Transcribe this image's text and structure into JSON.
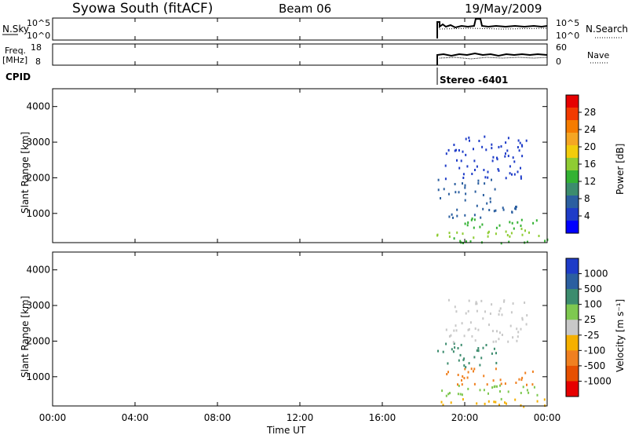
{
  "header": {
    "station": "Syowa South (fitACF)",
    "beam": "Beam 06",
    "date": "19/May/2009"
  },
  "top_panels": {
    "nsky_label": "N.Sky",
    "nsearch_label": "N.Search",
    "nsky_ticks": [
      "10^5",
      "10^0"
    ],
    "nsearch_ticks": [
      "10^5",
      "10^0"
    ],
    "freq_label_1": "Freq.",
    "freq_label_2": "[MHz]",
    "freq_ticks": [
      "18",
      "8"
    ],
    "nave_label": "Nave",
    "nave_ticks": [
      "60",
      "0"
    ],
    "cpid_label": "CPID",
    "cpid_value": "Stereo -6401"
  },
  "axes": {
    "xlabel": "Time UT",
    "x_ticks": [
      "00:00",
      "04:00",
      "08:00",
      "12:00",
      "16:00",
      "20:00",
      "00:00"
    ],
    "ylabel": "Slant Range [km]",
    "y_ticks": [
      "4000",
      "3000",
      "2000",
      "1000"
    ]
  },
  "power_scale": {
    "label": "Power [dB]",
    "ticks": [
      "28",
      "24",
      "20",
      "16",
      "12",
      "8",
      "4"
    ],
    "colors": [
      "#e60000",
      "#f23a00",
      "#f57c00",
      "#f5a623",
      "#f2cc0c",
      "#8fcc33",
      "#33b233",
      "#3c8c6e",
      "#2b5fa0",
      "#1e3cc8",
      "#0000ff"
    ]
  },
  "velocity_scale": {
    "label": "Velocity [m s⁻¹]",
    "ticks": [
      "1000",
      "500",
      "100",
      "25",
      "-25",
      "-100",
      "-500",
      "-1000"
    ],
    "colors": [
      "#1e3cc8",
      "#2b5fa0",
      "#3c8c6e",
      "#7ec850",
      "#c8c8c8",
      "#f5b000",
      "#f08020",
      "#e65000",
      "#e60000"
    ]
  },
  "chart_data": [
    {
      "type": "line",
      "name": "noise",
      "x": [
        18.4,
        24.0
      ],
      "xlim": [
        0,
        24
      ],
      "ylim": [
        0,
        5
      ]
    },
    {
      "type": "line",
      "name": "frequency",
      "xlim": [
        0,
        24
      ],
      "ylim": [
        8,
        18
      ],
      "x": [
        18.4,
        24.0
      ]
    },
    {
      "type": "heatmap",
      "name": "power",
      "xlim": [
        0,
        24
      ],
      "ylim": [
        180,
        4500
      ],
      "data_start_hour": 18.4,
      "regions": [
        {
          "t0": 18.5,
          "t1": 24.0,
          "r0": 180,
          "r1": 350,
          "power": 14
        },
        {
          "t0": 18.6,
          "t1": 23.8,
          "r0": 350,
          "r1": 600,
          "power": 16
        },
        {
          "t0": 19.0,
          "t1": 23.5,
          "r0": 600,
          "r1": 900,
          "power": 12
        },
        {
          "t0": 19.2,
          "t1": 22.5,
          "r0": 900,
          "r1": 1300,
          "power": 8
        },
        {
          "t0": 18.6,
          "t1": 21.5,
          "r0": 1300,
          "r1": 2000,
          "power": 6
        },
        {
          "t0": 19.0,
          "t1": 23.0,
          "r0": 2000,
          "r1": 3200,
          "power": 4
        }
      ]
    },
    {
      "type": "heatmap",
      "name": "velocity",
      "xlim": [
        0,
        24
      ],
      "ylim": [
        180,
        4500
      ],
      "data_start_hour": 18.4,
      "regions": [
        {
          "t0": 18.5,
          "t1": 24.0,
          "r0": 180,
          "r1": 400,
          "velocity": -100
        },
        {
          "t0": 18.6,
          "t1": 23.8,
          "r0": 400,
          "r1": 800,
          "velocity": 25
        },
        {
          "t0": 19.0,
          "t1": 23.5,
          "r0": 800,
          "r1": 1300,
          "velocity": -500
        },
        {
          "t0": 18.6,
          "t1": 21.5,
          "r0": 1300,
          "r1": 2000,
          "velocity": 100
        },
        {
          "t0": 19.0,
          "t1": 23.0,
          "r0": 2000,
          "r1": 3200,
          "velocity": -25
        }
      ]
    }
  ]
}
